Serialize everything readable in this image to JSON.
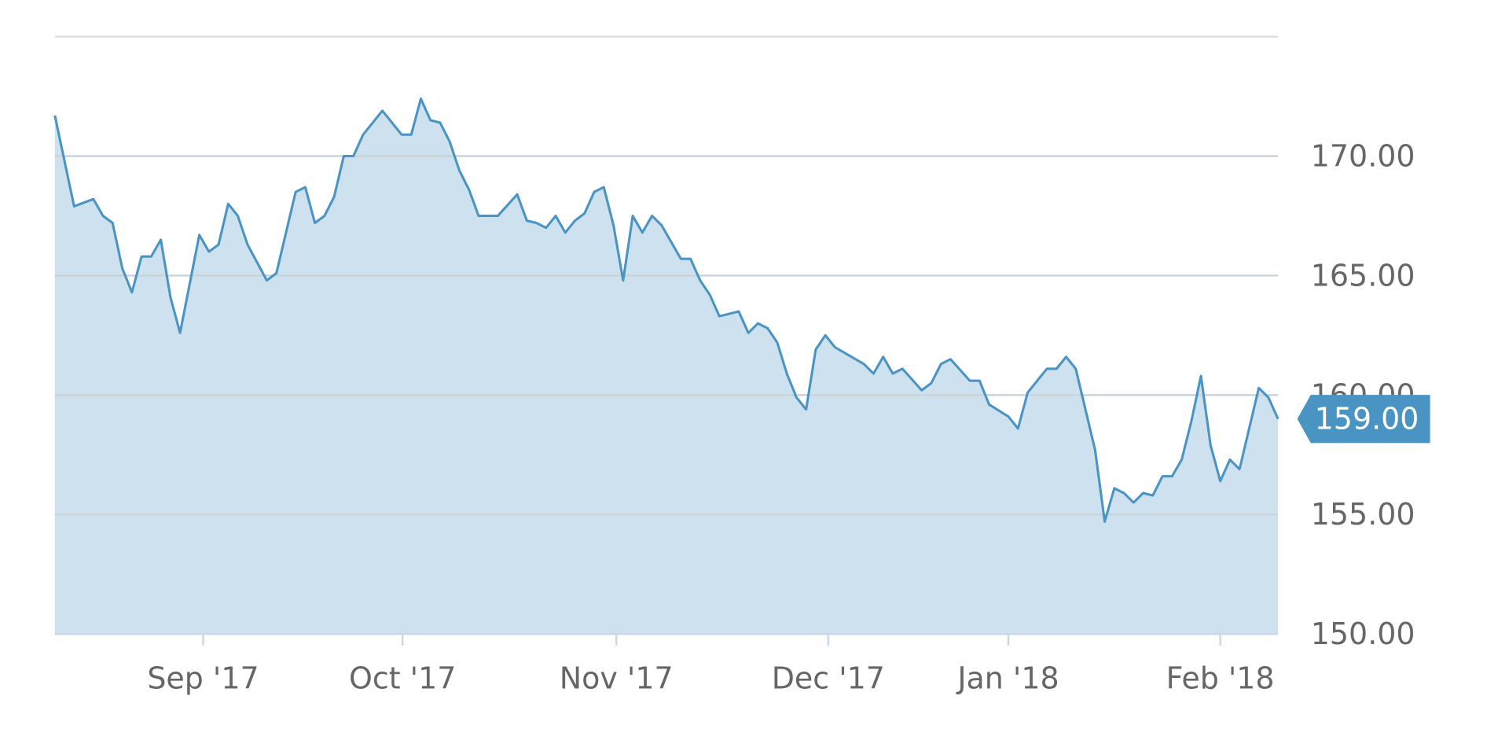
{
  "chart_data": {
    "type": "area",
    "x": [
      0,
      2,
      4,
      5,
      6,
      7,
      8,
      9,
      10,
      11,
      12,
      13,
      15,
      16,
      17,
      18,
      19,
      20,
      22,
      23,
      25,
      26,
      27,
      28,
      29,
      30,
      31,
      32,
      34,
      36,
      37,
      38,
      39,
      40,
      41,
      42,
      43,
      44,
      46,
      48,
      49,
      50,
      51,
      52,
      53,
      54,
      55,
      56,
      57,
      58,
      59,
      60,
      61,
      62,
      63,
      65,
      66,
      67,
      68,
      69,
      70,
      71,
      72,
      73,
      74,
      75,
      76,
      77,
      78,
      79,
      80,
      81,
      84,
      85,
      86,
      87,
      88,
      90,
      91,
      92,
      93,
      95,
      96,
      97,
      99,
      100,
      101,
      103,
      104,
      105,
      106,
      108,
      109,
      110,
      111,
      112,
      113,
      114,
      115,
      116,
      117,
      118,
      119,
      120,
      121,
      122,
      123,
      125,
      126,
      127
    ],
    "values": [
      171.7,
      167.9,
      168.2,
      167.5,
      167.2,
      165.3,
      164.3,
      165.8,
      165.8,
      166.5,
      164.1,
      162.6,
      166.7,
      166.0,
      166.3,
      168.0,
      167.5,
      166.3,
      164.8,
      165.1,
      168.5,
      168.7,
      167.2,
      167.5,
      168.3,
      170.0,
      170.0,
      170.9,
      171.9,
      170.9,
      170.9,
      172.4,
      171.5,
      171.4,
      170.6,
      169.4,
      168.6,
      167.5,
      167.5,
      168.4,
      167.3,
      167.2,
      167.0,
      167.5,
      166.8,
      167.3,
      167.6,
      168.5,
      168.7,
      167.1,
      164.8,
      167.5,
      166.8,
      167.5,
      167.1,
      165.7,
      165.7,
      164.8,
      164.2,
      163.3,
      163.4,
      163.5,
      162.6,
      163.0,
      162.8,
      162.2,
      160.9,
      159.9,
      159.4,
      161.9,
      162.5,
      162.0,
      161.3,
      160.9,
      161.6,
      160.9,
      161.1,
      160.2,
      160.5,
      161.3,
      161.5,
      160.6,
      160.6,
      159.6,
      159.1,
      158.6,
      160.1,
      161.1,
      161.1,
      161.6,
      161.1,
      157.7,
      154.7,
      156.1,
      155.9,
      155.5,
      155.9,
      155.8,
      156.6,
      156.6,
      157.3,
      158.9,
      160.8,
      157.9,
      156.4,
      157.3,
      156.9,
      160.3,
      159.9,
      159.0
    ],
    "color": "#4a94c4",
    "fill": "#cde1ee",
    "xlim": [
      0,
      127
    ],
    "ylim": [
      150,
      175
    ],
    "xticks": [
      {
        "value": 15.4,
        "label": "Sep '17"
      },
      {
        "value": 36.1,
        "label": "Oct '17"
      },
      {
        "value": 58.3,
        "label": "Nov '17"
      },
      {
        "value": 80.3,
        "label": "Dec '17"
      },
      {
        "value": 99,
        "label": "Jan '18"
      },
      {
        "value": 121,
        "label": "Feb '18"
      }
    ],
    "yticks": [
      {
        "value": 150,
        "label": "150.00"
      },
      {
        "value": 155,
        "label": "155.00"
      },
      {
        "value": 160,
        "label": "160.00"
      },
      {
        "value": 165,
        "label": "165.00"
      },
      {
        "value": 170,
        "label": "170.00"
      }
    ],
    "current": {
      "value": 159.0,
      "label": "159.00"
    },
    "grid": true
  }
}
